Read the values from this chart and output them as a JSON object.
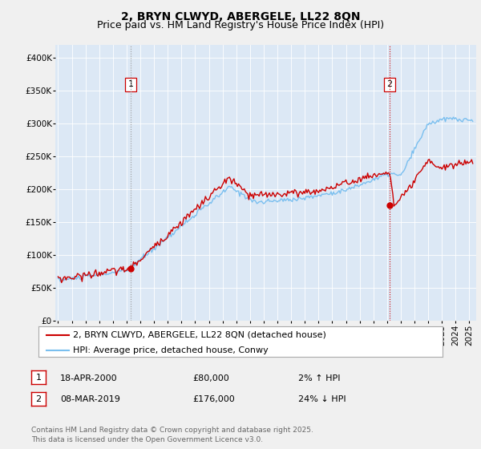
{
  "title": "2, BRYN CLWYD, ABERGELE, LL22 8QN",
  "subtitle": "Price paid vs. HM Land Registry's House Price Index (HPI)",
  "ylim": [
    0,
    420000
  ],
  "yticks": [
    0,
    50000,
    100000,
    150000,
    200000,
    250000,
    300000,
    350000,
    400000
  ],
  "xlim_start": 1994.8,
  "xlim_end": 2025.5,
  "hpi_color": "#7abfef",
  "price_color": "#cc0000",
  "background_color": "#f0f0f0",
  "plot_bg_color": "#dce8f5",
  "grid_color": "#ffffff",
  "legend_label_price": "2, BRYN CLWYD, ABERGELE, LL22 8QN (detached house)",
  "legend_label_hpi": "HPI: Average price, detached house, Conwy",
  "sale1_label": "1",
  "sale1_date": "18-APR-2000",
  "sale1_price": "£80,000",
  "sale1_hpi": "2% ↑ HPI",
  "sale1_x": 2000.29,
  "sale1_y": 80000,
  "sale2_label": "2",
  "sale2_date": "08-MAR-2019",
  "sale2_price": "£176,000",
  "sale2_hpi": "24% ↓ HPI",
  "sale2_x": 2019.18,
  "sale2_y": 176000,
  "footnote": "Contains HM Land Registry data © Crown copyright and database right 2025.\nThis data is licensed under the Open Government Licence v3.0.",
  "title_fontsize": 10,
  "subtitle_fontsize": 9,
  "tick_fontsize": 7.5,
  "legend_fontsize": 8,
  "annotation_fontsize": 8,
  "footnote_fontsize": 6.5
}
